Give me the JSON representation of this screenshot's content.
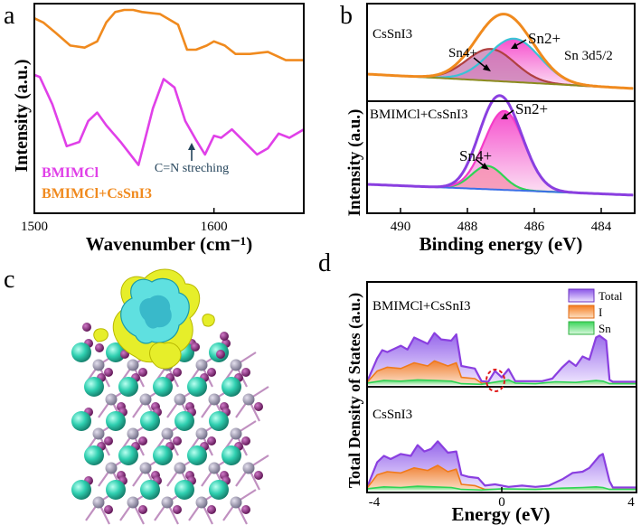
{
  "panel_labels": {
    "a": "a",
    "b": "b",
    "c": "c",
    "d": "d"
  },
  "colors": {
    "magenta": "#e040e8",
    "orange": "#f08a1e",
    "purple": "#8a3fe0",
    "pink": "#f53cc8",
    "cyan": "#39c2d6",
    "green": "#2fd455",
    "olive": "#8b8b1e",
    "blue": "#3c6ee6",
    "dark_red": "#b04040",
    "red_circle": "#e01a1a",
    "arrow": "#23435a",
    "lila_fill": "#b99af0",
    "orange_fill": "#f7a15c",
    "green_fill": "#9be89b"
  },
  "chart_data": [
    {
      "id": "a",
      "type": "line",
      "xlabel": "Wavenumber (cm⁻¹)",
      "ylabel": "Intensity (a.u.)",
      "xlim": [
        1500,
        1650
      ],
      "xticks": [
        "1500",
        "1600"
      ],
      "annotation": "C=N streching",
      "series": [
        {
          "name": "BMIMCl",
          "x": [
            1500,
            1503,
            1510,
            1518,
            1525,
            1530,
            1535,
            1540,
            1548,
            1558,
            1566,
            1572,
            1578,
            1584,
            1590,
            1595,
            1600,
            1604,
            1610,
            1617,
            1624,
            1630,
            1636,
            1642,
            1650
          ],
          "y": [
            0.66,
            0.65,
            0.52,
            0.32,
            0.34,
            0.44,
            0.48,
            0.42,
            0.34,
            0.23,
            0.5,
            0.64,
            0.6,
            0.44,
            0.35,
            0.28,
            0.37,
            0.36,
            0.4,
            0.34,
            0.28,
            0.31,
            0.38,
            0.36,
            0.4
          ]
        },
        {
          "name": "BMIMCl+CsSnI3",
          "x": [
            1500,
            1505,
            1512,
            1520,
            1528,
            1535,
            1540,
            1545,
            1550,
            1555,
            1560,
            1570,
            1580,
            1585,
            1590,
            1596,
            1600,
            1606,
            1612,
            1620,
            1630,
            1640,
            1650
          ],
          "y": [
            0.93,
            0.91,
            0.86,
            0.8,
            0.79,
            0.82,
            0.91,
            0.96,
            0.97,
            0.97,
            0.96,
            0.95,
            0.9,
            0.78,
            0.78,
            0.8,
            0.82,
            0.8,
            0.76,
            0.76,
            0.77,
            0.73,
            0.73
          ]
        }
      ]
    },
    {
      "id": "b",
      "type": "area",
      "xlabel": "Binding energy (eV)",
      "ylabel": "Intensity (a.u.)",
      "xlim": [
        491,
        483
      ],
      "xticks": [
        "490",
        "488",
        "486",
        "484"
      ],
      "title": "Sn 3d5/2",
      "subplots": [
        {
          "label": "CsSnI3",
          "peaks": [
            {
              "name": "Sn4+",
              "center": 487.3,
              "fwhm": 1.7,
              "height": 0.55
            },
            {
              "name": "Sn2+",
              "center": 486.6,
              "fwhm": 1.8,
              "height": 0.75
            }
          ],
          "peak_labels": [
            "Sn4+",
            "Sn2+"
          ]
        },
        {
          "label": "BMIMCl+CsSnI3",
          "peaks": [
            {
              "name": "Sn4+",
              "center": 487.4,
              "fwhm": 1.1,
              "height": 0.28
            },
            {
              "name": "Sn2+",
              "center": 486.9,
              "fwhm": 1.4,
              "height": 0.95
            }
          ],
          "peak_labels": [
            "Sn4+",
            "Sn2+"
          ]
        }
      ]
    },
    {
      "id": "d",
      "type": "area",
      "xlabel": "Energy (eV)",
      "ylabel": "Total Density of States (a.u.)",
      "xlim": [
        -4,
        4
      ],
      "xticks": [
        "-4",
        "0",
        "4"
      ],
      "legend": [
        "Total",
        "I",
        "Sn"
      ],
      "subplots": [
        {
          "label": "BMIMCl+CsSnI3",
          "total": {
            "x": [
              -4,
              -3.7,
              -3.55,
              -3.4,
              -3.0,
              -2.8,
              -2.6,
              -2.4,
              -2.2,
              -2.0,
              -1.8,
              -1.5,
              -1.35,
              -1.2,
              -1.0,
              -0.8,
              -0.6,
              -0.4,
              -0.2,
              0.0,
              0.2,
              0.4,
              0.8,
              1.2,
              1.5,
              1.8,
              2.0,
              2.2,
              2.4,
              2.6,
              2.8,
              2.9,
              3.1,
              3.2,
              3.3,
              4.0
            ],
            "y": [
              0.05,
              0.42,
              0.55,
              0.52,
              0.62,
              0.56,
              0.75,
              0.7,
              0.65,
              0.82,
              0.72,
              0.7,
              0.8,
              0.3,
              0.28,
              0.26,
              0.06,
              0.05,
              0.22,
              0.12,
              0.25,
              0.06,
              0.06,
              0.06,
              0.1,
              0.28,
              0.38,
              0.3,
              0.45,
              0.4,
              0.75,
              0.78,
              0.7,
              0.08,
              0.05,
              0.05
            ]
          },
          "I": {
            "x": [
              -4,
              -3.7,
              -3.4,
              -3.0,
              -2.6,
              -2.2,
              -2.0,
              -1.6,
              -1.35,
              -1.2,
              -0.8,
              -0.6,
              0.0,
              4.0
            ],
            "y": [
              0.04,
              0.22,
              0.28,
              0.26,
              0.35,
              0.3,
              0.38,
              0.3,
              0.35,
              0.12,
              0.1,
              0.03,
              0.02,
              0.02
            ]
          },
          "Sn": {
            "x": [
              -4,
              -3.5,
              -3.0,
              -2.5,
              -2.0,
              -1.5,
              -1.2,
              -0.6,
              0.2,
              0.4,
              1.0,
              1.6,
              2.2,
              2.8,
              3.0,
              3.2,
              4.0
            ],
            "y": [
              0.03,
              0.07,
              0.06,
              0.08,
              0.07,
              0.06,
              0.02,
              0.01,
              0.08,
              0.03,
              0.02,
              0.05,
              0.04,
              0.07,
              0.06,
              0.02,
              0.02
            ]
          }
        },
        {
          "label": "CsSnI3",
          "total": {
            "x": [
              -4,
              -3.7,
              -3.5,
              -3.3,
              -3.0,
              -2.7,
              -2.5,
              -2.3,
              -2.1,
              -1.9,
              -1.6,
              -1.35,
              -1.2,
              -1.0,
              -0.7,
              -0.5,
              -0.2,
              0.2,
              0.6,
              1.0,
              1.4,
              1.8,
              2.1,
              2.4,
              2.6,
              2.9,
              3.0,
              3.2,
              3.3,
              4.0
            ],
            "y": [
              0.05,
              0.45,
              0.55,
              0.5,
              0.58,
              0.55,
              0.72,
              0.62,
              0.66,
              0.78,
              0.6,
              0.62,
              0.25,
              0.22,
              0.2,
              0.08,
              0.1,
              0.06,
              0.08,
              0.06,
              0.08,
              0.18,
              0.28,
              0.3,
              0.36,
              0.55,
              0.58,
              0.15,
              0.05,
              0.05
            ]
          },
          "I": {
            "x": [
              -4,
              -3.7,
              -3.4,
              -3.0,
              -2.6,
              -2.2,
              -1.9,
              -1.6,
              -1.35,
              -1.2,
              -0.8,
              -0.5,
              0.0,
              4.0
            ],
            "y": [
              0.04,
              0.25,
              0.3,
              0.28,
              0.36,
              0.32,
              0.4,
              0.3,
              0.34,
              0.1,
              0.08,
              0.02,
              0.02,
              0.02
            ]
          },
          "Sn": {
            "x": [
              -4,
              -3.5,
              -3.0,
              -2.5,
              -2.0,
              -1.5,
              -1.2,
              -0.6,
              0.0,
              1.0,
              1.8,
              2.4,
              2.8,
              3.0,
              3.2,
              4.0
            ],
            "y": [
              0.03,
              0.06,
              0.05,
              0.07,
              0.06,
              0.05,
              0.02,
              0.01,
              0.03,
              0.02,
              0.04,
              0.05,
              0.06,
              0.05,
              0.02,
              0.02
            ]
          }
        }
      ]
    }
  ]
}
